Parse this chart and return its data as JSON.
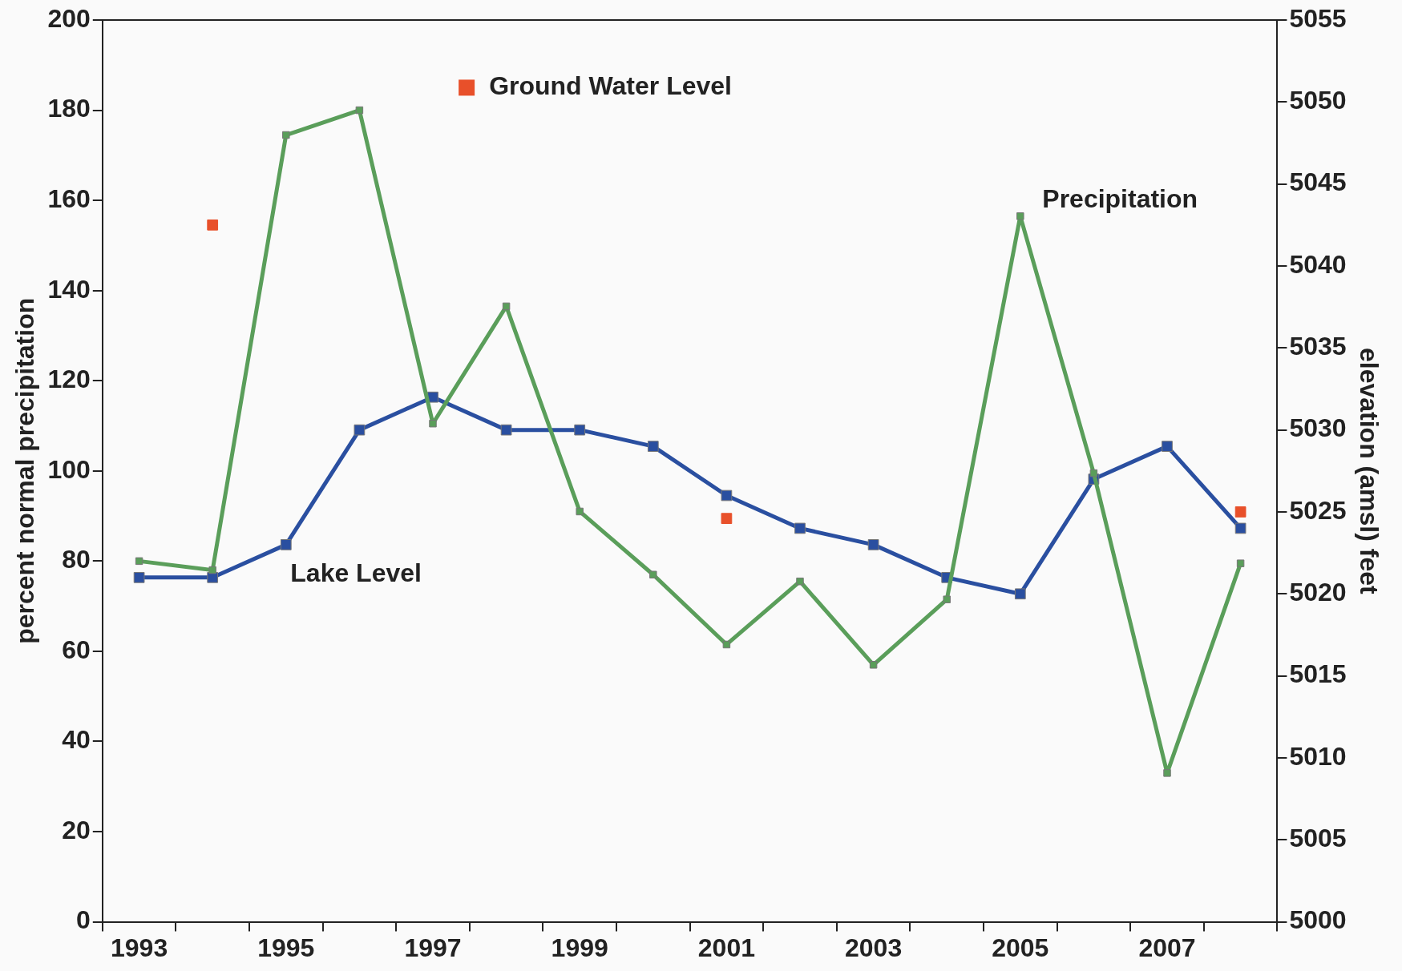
{
  "chart_data": {
    "type": "line",
    "categories": [
      "1993",
      null,
      "1995",
      null,
      "1997",
      null,
      "1999",
      null,
      "2001",
      null,
      "2003",
      null,
      "2005",
      null,
      "2007",
      null
    ],
    "ylabel": "percent normal precipitation",
    "y2label": "elevation (amsl) feet",
    "ylim": [
      0,
      200
    ],
    "yticks": [
      0,
      20,
      40,
      60,
      80,
      100,
      120,
      140,
      160,
      180,
      200
    ],
    "y2lim": [
      5000,
      5055
    ],
    "y2ticks": [
      5000,
      5005,
      5010,
      5015,
      5020,
      5025,
      5030,
      5035,
      5040,
      5045,
      5050,
      5055
    ],
    "grid": false,
    "legend": "top",
    "marker": "square",
    "line_style": "solid",
    "series": [
      {
        "name": "Precipitation",
        "color": "#5a9e5a",
        "values": [
          80,
          78,
          174.5,
          180,
          110.5,
          136.5,
          91,
          77,
          61.5,
          75.5,
          57,
          71.5,
          156.5,
          99.5,
          33,
          79.5
        ]
      },
      {
        "name": "Lake Level",
        "type": "line",
        "axis": "y2",
        "color": "#2a4fa0",
        "values": [
          5021,
          5021,
          5023,
          5030,
          5032,
          5030,
          5030,
          5029,
          5026,
          5024,
          5023,
          5021,
          5020,
          5027,
          5029,
          5024
        ]
      },
      {
        "name": "Ground Water Level",
        "type": "scatter",
        "axis": "y2",
        "color": "#e8502a",
        "values": [
          null,
          5042.5,
          null,
          null,
          null,
          null,
          null,
          null,
          5024.6,
          null,
          null,
          null,
          null,
          null,
          null,
          5025
        ]
      }
    ]
  }
}
